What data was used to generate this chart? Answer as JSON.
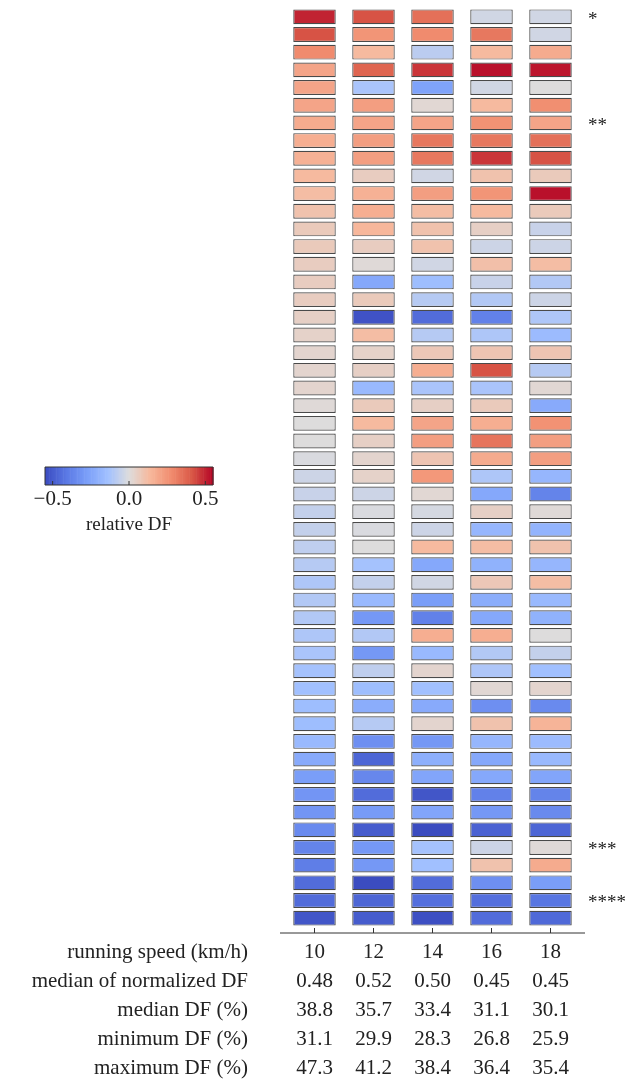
{
  "chart_data": {
    "type": "heatmap",
    "xlabel": "running speed (km/h)",
    "clabel": "relative DF",
    "categories": [
      "10",
      "12",
      "14",
      "16",
      "18"
    ],
    "y_categories": [
      null,
      null,
      null,
      null,
      null,
      null,
      null,
      null,
      null,
      null,
      null,
      null,
      null,
      null,
      null,
      null,
      null,
      null,
      null,
      null,
      null,
      null,
      null,
      null,
      null,
      null,
      null,
      null,
      null,
      null,
      null,
      null,
      null,
      null,
      null,
      null,
      null,
      null,
      null,
      null,
      null,
      null,
      null,
      null,
      null,
      null,
      null,
      null,
      null,
      null,
      null,
      null
    ],
    "y2_categories": [
      "*",
      null,
      null,
      null,
      null,
      null,
      "**",
      null,
      null,
      null,
      null,
      null,
      null,
      null,
      null,
      null,
      null,
      null,
      null,
      null,
      null,
      null,
      null,
      null,
      null,
      null,
      null,
      null,
      null,
      null,
      null,
      null,
      null,
      null,
      null,
      null,
      null,
      null,
      null,
      null,
      null,
      null,
      null,
      null,
      null,
      null,
      null,
      "***",
      null,
      null,
      "****",
      null
    ],
    "cells": [
      [
        0.5,
        0.42,
        0.35,
        -0.03,
        -0.03
      ],
      [
        0.42,
        0.25,
        0.28,
        0.33,
        -0.03
      ],
      [
        0.28,
        0.13,
        -0.08,
        0.13,
        0.18
      ],
      [
        0.2,
        0.38,
        0.47,
        0.53,
        0.52
      ],
      [
        0.2,
        -0.12,
        -0.26,
        -0.03,
        0.0
      ],
      [
        0.2,
        0.22,
        0.02,
        0.13,
        0.27
      ],
      [
        0.18,
        0.2,
        0.2,
        0.26,
        0.2
      ],
      [
        0.17,
        0.22,
        0.33,
        0.33,
        0.35
      ],
      [
        0.16,
        0.22,
        0.33,
        0.47,
        0.42
      ],
      [
        0.13,
        0.06,
        -0.03,
        0.1,
        0.07
      ],
      [
        0.12,
        0.16,
        0.22,
        0.25,
        0.53
      ],
      [
        0.1,
        0.17,
        0.12,
        0.13,
        0.07
      ],
      [
        0.07,
        0.14,
        0.1,
        0.05,
        -0.05
      ],
      [
        0.07,
        0.06,
        0.1,
        -0.04,
        -0.04
      ],
      [
        0.06,
        0.01,
        -0.03,
        0.11,
        0.12
      ],
      [
        0.06,
        -0.24,
        -0.15,
        -0.05,
        -0.1
      ],
      [
        0.06,
        0.07,
        -0.09,
        -0.1,
        -0.04
      ],
      [
        0.05,
        -0.53,
        -0.45,
        -0.38,
        -0.11
      ],
      [
        0.04,
        0.12,
        -0.09,
        -0.11,
        -0.16
      ],
      [
        0.03,
        0.04,
        0.08,
        0.09,
        0.09
      ],
      [
        0.03,
        0.05,
        0.17,
        0.42,
        -0.09
      ],
      [
        0.03,
        -0.17,
        -0.12,
        -0.12,
        0.02
      ],
      [
        0.01,
        0.07,
        0.05,
        0.07,
        -0.23
      ],
      [
        0.0,
        0.13,
        0.2,
        0.17,
        0.26
      ],
      [
        0.0,
        0.05,
        0.22,
        0.34,
        0.22
      ],
      [
        -0.01,
        0.03,
        0.09,
        0.18,
        0.22
      ],
      [
        -0.04,
        0.04,
        0.24,
        -0.11,
        -0.18
      ],
      [
        -0.05,
        -0.04,
        0.02,
        -0.24,
        -0.37
      ],
      [
        -0.06,
        -0.01,
        -0.02,
        0.05,
        0.01
      ],
      [
        -0.06,
        -0.01,
        -0.04,
        -0.18,
        -0.19
      ],
      [
        -0.07,
        0.0,
        0.13,
        0.12,
        0.1
      ],
      [
        -0.09,
        -0.13,
        -0.24,
        -0.2,
        -0.18
      ],
      [
        -0.11,
        -0.06,
        -0.03,
        0.08,
        0.12
      ],
      [
        -0.1,
        -0.17,
        -0.28,
        -0.22,
        -0.17
      ],
      [
        -0.1,
        -0.3,
        -0.38,
        -0.24,
        -0.2
      ],
      [
        -0.11,
        -0.1,
        0.17,
        0.17,
        0.0
      ],
      [
        -0.12,
        -0.3,
        -0.17,
        -0.1,
        -0.06
      ],
      [
        -0.13,
        -0.07,
        0.03,
        -0.11,
        -0.14
      ],
      [
        -0.14,
        -0.15,
        -0.14,
        0.02,
        0.03
      ],
      [
        -0.15,
        -0.22,
        -0.23,
        -0.33,
        -0.35
      ],
      [
        -0.15,
        -0.09,
        0.03,
        0.1,
        0.15
      ],
      [
        -0.17,
        -0.33,
        -0.3,
        -0.18,
        -0.16
      ],
      [
        -0.23,
        -0.47,
        -0.21,
        -0.24,
        -0.17
      ],
      [
        -0.28,
        -0.36,
        -0.25,
        -0.24,
        -0.25
      ],
      [
        -0.31,
        -0.45,
        -0.52,
        -0.38,
        -0.37
      ],
      [
        -0.31,
        -0.29,
        -0.25,
        -0.3,
        -0.35
      ],
      [
        -0.35,
        -0.5,
        -0.55,
        -0.48,
        -0.47
      ],
      [
        -0.37,
        -0.3,
        -0.13,
        -0.04,
        0.01
      ],
      [
        -0.39,
        -0.3,
        -0.14,
        0.1,
        0.18
      ],
      [
        -0.45,
        -0.55,
        -0.45,
        -0.33,
        -0.28
      ],
      [
        -0.45,
        -0.47,
        -0.44,
        -0.44,
        -0.42
      ],
      [
        -0.52,
        -0.5,
        -0.54,
        -0.45,
        -0.46
      ]
    ],
    "clim": [
      -0.55,
      0.55
    ],
    "cticks": [
      {
        "value": -0.5,
        "label": "−0.5"
      },
      {
        "value": 0,
        "label": "0.0"
      },
      {
        "value": 0.5,
        "label": "0.5"
      }
    ],
    "annotations": [
      "median of normalized DF",
      "0.48",
      "0.52",
      "0.50",
      "0.45",
      "0.45",
      "median DF (%)",
      "38.8",
      "35.7",
      "33.4",
      "31.1",
      "30.1",
      "minimum DF (%)",
      "31.1",
      "29.9",
      "28.3",
      "26.8",
      "25.9",
      "maximum DF (%)",
      "47.3",
      "41.2",
      "38.4",
      "36.4",
      "35.4"
    ]
  }
}
